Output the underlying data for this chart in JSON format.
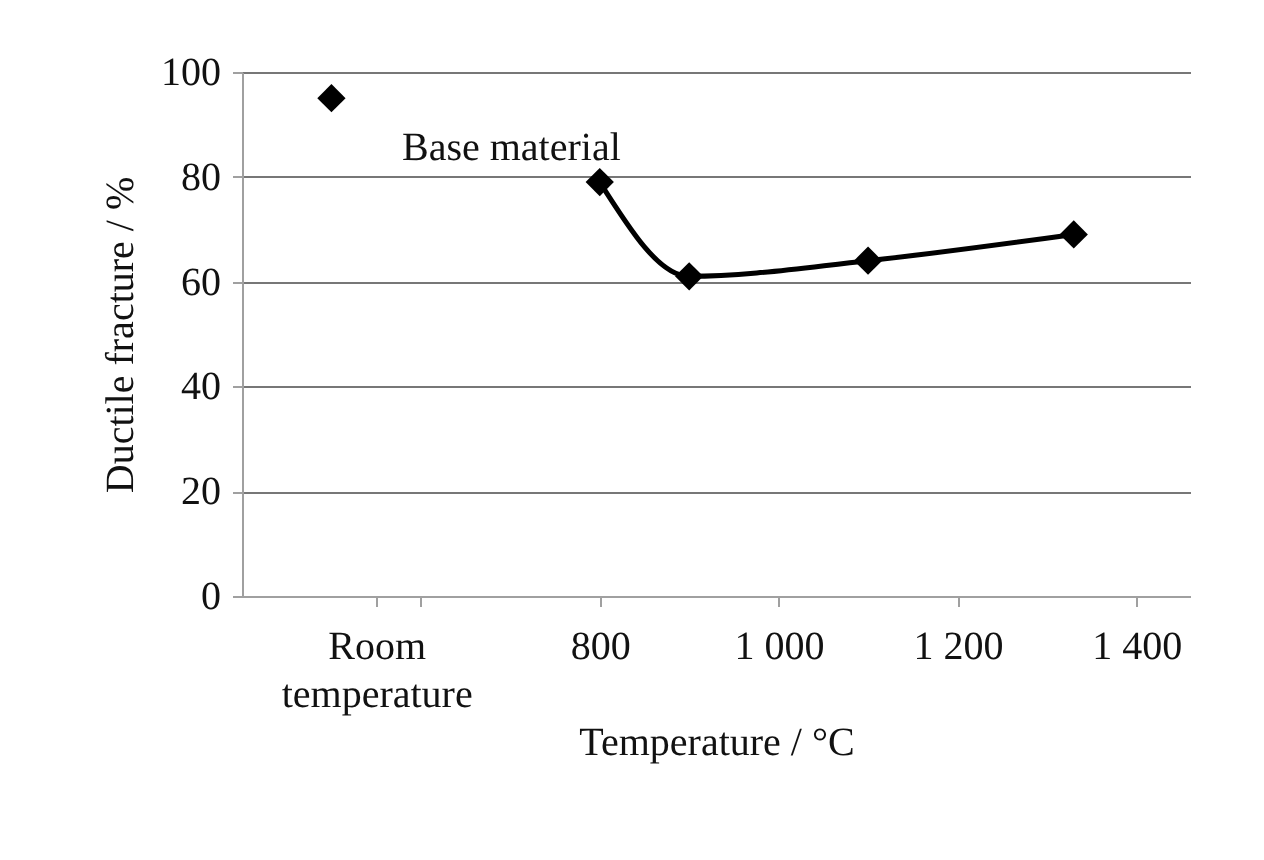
{
  "chart_data": {
    "type": "line",
    "xlabel": "Temperature  / °C",
    "ylabel": "Ductile fracture / %",
    "annotations": [
      "Base material"
    ],
    "series": [
      {
        "type": "scatter",
        "x": [
          500
        ],
        "values": [
          95
        ],
        "color": "#000000"
      },
      {
        "x": [
          800,
          900,
          1100,
          1330
        ],
        "values": [
          79,
          61,
          64,
          69
        ],
        "color": "#000000"
      }
    ],
    "xlim": [
      400,
      1460
    ],
    "xticks": [
      {
        "value": 550,
        "label": "Room temperature"
      },
      {
        "value": 600,
        "label": null
      },
      {
        "value": 800,
        "label": "800"
      },
      {
        "value": 1000,
        "label": "1 000"
      },
      {
        "value": 1200,
        "label": "1 200"
      },
      {
        "value": 1400,
        "label": "1 400"
      }
    ],
    "ylim": [
      0,
      100
    ],
    "yticks": [
      0,
      20,
      40,
      60,
      80,
      100
    ],
    "grid": "y",
    "marker": "diamond",
    "line_style": "solid"
  }
}
